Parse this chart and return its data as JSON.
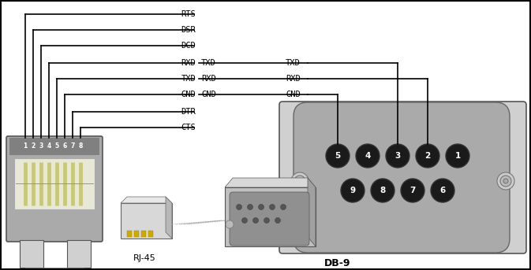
{
  "bg_color": "#ffffff",
  "rj45_pin_labels": [
    "RTS",
    "DSR",
    "DCD",
    "RXD",
    "TXD",
    "GND",
    "DTR",
    "CTS"
  ],
  "rj45_numbers": [
    "1",
    "2",
    "3",
    "4",
    "5",
    "6",
    "7",
    "8"
  ],
  "mid_labels_left": [
    "TXD",
    "RXD",
    "GND"
  ],
  "mid_labels_right": [
    "TXD",
    "RXD",
    "GND"
  ],
  "db9_top_pins": [
    "5",
    "4",
    "3",
    "2",
    "1"
  ],
  "db9_bot_pins": [
    "9",
    "8",
    "7",
    "6"
  ],
  "db9_label": "DB-9",
  "rj45_label": "RJ-45",
  "lc": "#000000",
  "gray_light": "#d0d0d0",
  "gray_mid": "#aaaaaa",
  "gray_dark": "#888888",
  "gray_body": "#b8b8b8",
  "pin_dark": "#1a1a1a",
  "pin_text": "#ffffff",
  "green_pin": "#c8c87a",
  "inner_bg": "#e8e8d8"
}
